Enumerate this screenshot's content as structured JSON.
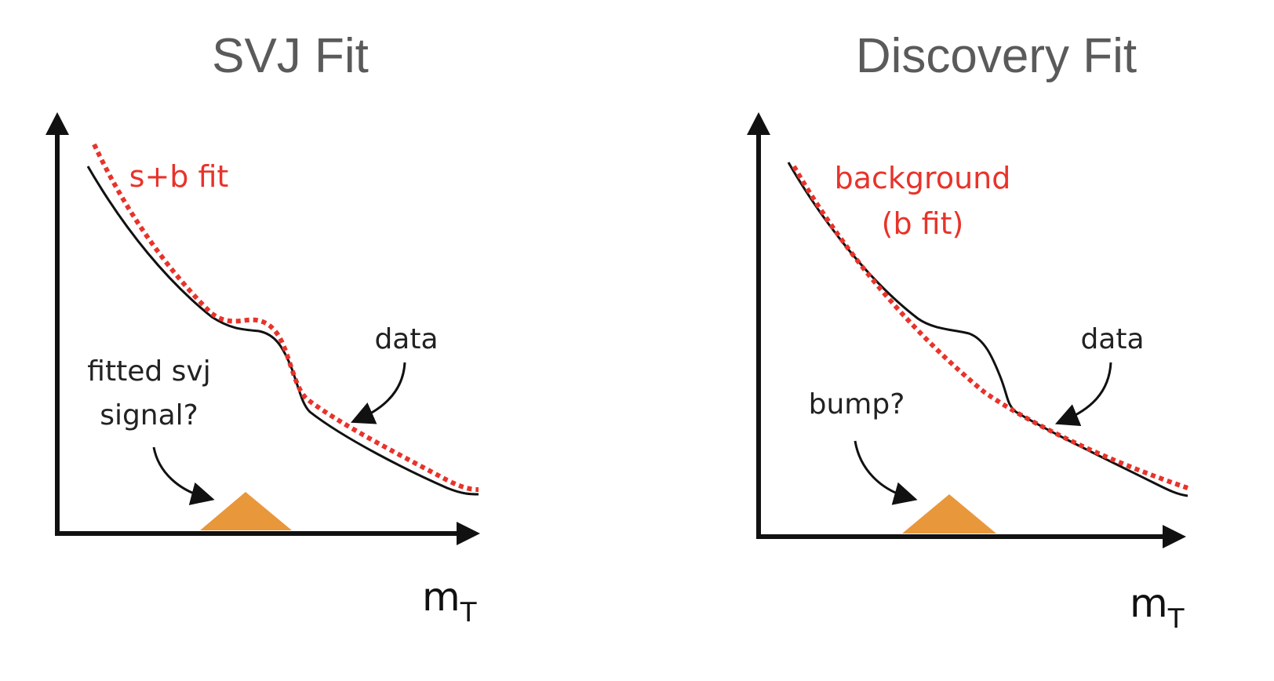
{
  "panels": [
    {
      "title": "SVJ Fit",
      "fit_label_lines": [
        "s+b fit"
      ],
      "data_label": "data",
      "signal_label_lines": [
        "fitted svj",
        "signal?"
      ],
      "x_axis_label": "m",
      "x_axis_subscript": "T"
    },
    {
      "title": "Discovery Fit",
      "fit_label_lines": [
        "background",
        "(b fit)"
      ],
      "data_label": "data",
      "signal_label_lines": [
        "bump?"
      ],
      "x_axis_label": "m",
      "x_axis_subscript": "T"
    }
  ],
  "colors": {
    "fit_curve": "#e8332a",
    "data_curve": "#111111",
    "signal": "#e8973a",
    "title": "#5a5a5a"
  }
}
